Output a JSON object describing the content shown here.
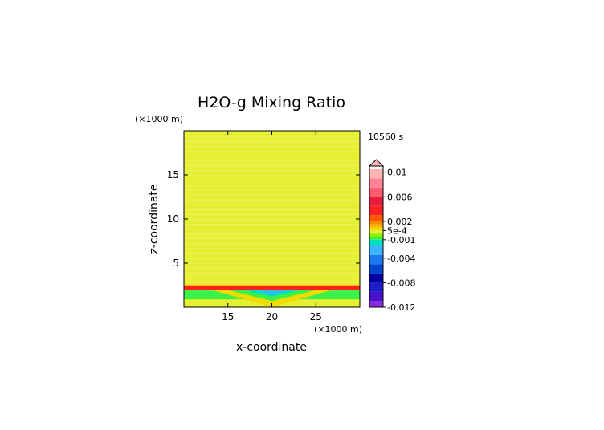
{
  "chart_data": {
    "type": "heatmap",
    "title": "H2O-g Mixing Ratio",
    "xlabel": "x-coordinate",
    "ylabel": "z-coordinate",
    "x_unit": "(×1000 m)",
    "y_unit": "(×1000 m)",
    "time_label": "10560 s",
    "xlim": [
      10,
      30
    ],
    "ylim": [
      0,
      20
    ],
    "x_ticks": [
      15,
      20,
      25
    ],
    "y_ticks": [
      5,
      10,
      15
    ],
    "field": {
      "background_value": 0.0003,
      "band": {
        "z_bottom": 2.0,
        "z_top": 2.4,
        "value": 0.004,
        "x_from": 10,
        "x_to": 30
      },
      "cold_pool": [
        {
          "value": 0.0,
          "points": [
            [
              10,
              0
            ],
            [
              10,
              2.0
            ],
            [
              30,
              2.0
            ],
            [
              30,
              0
            ]
          ]
        },
        {
          "value": -0.0008,
          "points": [
            [
              10,
              0.9
            ],
            [
              10,
              1.9
            ],
            [
              30,
              1.9
            ],
            [
              30,
              0.9
            ]
          ]
        },
        {
          "value": 0.0008,
          "points": [
            [
              13,
              2.0
            ],
            [
              20,
              0.0
            ],
            [
              27,
              2.0
            ]
          ]
        },
        {
          "value": -0.0006,
          "points": [
            [
              15,
              1.95
            ],
            [
              20,
              0.7
            ],
            [
              25,
              1.95
            ]
          ]
        },
        {
          "value": -0.002,
          "points": [
            [
              17,
              1.9
            ],
            [
              20,
              1.2
            ],
            [
              23,
              1.9
            ]
          ]
        },
        {
          "value": -0.0035,
          "points": [
            [
              18.5,
              1.85
            ],
            [
              20,
              1.45
            ],
            [
              21.8,
              1.85
            ]
          ]
        }
      ]
    },
    "colorbar": {
      "labels": [
        "0.01",
        "0.006",
        "0.002",
        "5e-4",
        "-0.001",
        "-0.004",
        "-0.008",
        "-0.012"
      ],
      "label_values": [
        0.01,
        0.006,
        0.002,
        0.0005,
        -0.001,
        -0.004,
        -0.008,
        -0.012
      ],
      "min": -0.012,
      "max": 0.011,
      "extend": "max",
      "levels": [
        {
          "from": -0.0125,
          "to": -0.011,
          "color": "#8a2be2"
        },
        {
          "from": -0.011,
          "to": -0.0095,
          "color": "#4b0fd0"
        },
        {
          "from": -0.0095,
          "to": -0.008,
          "color": "#1e1ec8"
        },
        {
          "from": -0.008,
          "to": -0.0065,
          "color": "#0000a0"
        },
        {
          "from": -0.0065,
          "to": -0.005,
          "color": "#0046d2"
        },
        {
          "from": -0.005,
          "to": -0.0035,
          "color": "#1e78f0"
        },
        {
          "from": -0.0035,
          "to": -0.002,
          "color": "#3cb4ff"
        },
        {
          "from": -0.002,
          "to": -0.001,
          "color": "#00e0c0"
        },
        {
          "from": -0.001,
          "to": -0.0005,
          "color": "#3cf04a"
        },
        {
          "from": -0.0005,
          "to": 0.0,
          "color": "#8cf000"
        },
        {
          "from": 0.0,
          "to": 0.0005,
          "color": "#e6f032"
        },
        {
          "from": 0.0005,
          "to": 0.001,
          "color": "#f0dc00"
        },
        {
          "from": 0.001,
          "to": 0.0015,
          "color": "#ffb400"
        },
        {
          "from": 0.0015,
          "to": 0.002,
          "color": "#ff8c00"
        },
        {
          "from": 0.002,
          "to": 0.003,
          "color": "#ff5a00"
        },
        {
          "from": 0.003,
          "to": 0.0045,
          "color": "#ff2020"
        },
        {
          "from": 0.0045,
          "to": 0.006,
          "color": "#e61e3c"
        },
        {
          "from": 0.006,
          "to": 0.0075,
          "color": "#ff5a6e"
        },
        {
          "from": 0.0075,
          "to": 0.009,
          "color": "#ff8296"
        },
        {
          "from": 0.009,
          "to": 0.0105,
          "color": "#ffb4b4"
        }
      ]
    }
  }
}
